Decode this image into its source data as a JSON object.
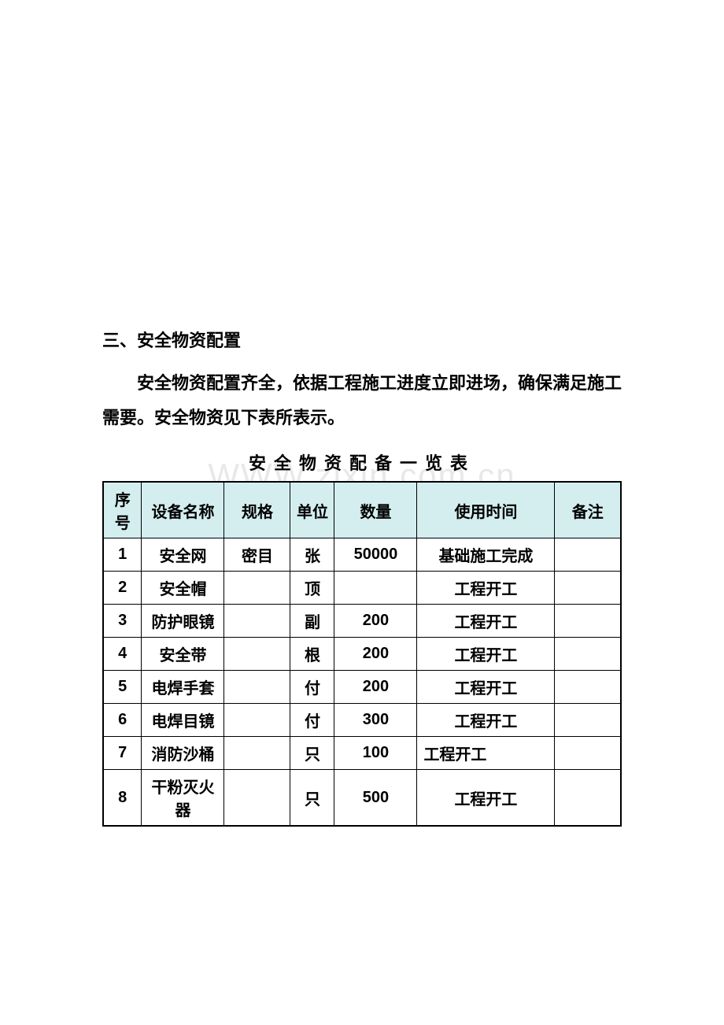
{
  "watermark": "WWW.zixin.com.cn",
  "section_heading": "三、安全物资配置",
  "body_text": "安全物资配置齐全，依据工程施工进度立即进场，确保满足施工需要。安全物资见下表所表示。",
  "table_title": "安全物资配备一览表",
  "table": {
    "header_bg_color": "#d4eef0",
    "border_color": "#000000",
    "columns": [
      {
        "key": "seq",
        "label": "序号",
        "width": "7%"
      },
      {
        "key": "name",
        "label": "设备名称",
        "width": "15%"
      },
      {
        "key": "spec",
        "label": "规格",
        "width": "12%"
      },
      {
        "key": "unit",
        "label": "单位",
        "width": "8%"
      },
      {
        "key": "qty",
        "label": "数量",
        "width": "15%"
      },
      {
        "key": "time",
        "label": "使用时间",
        "width": "25%"
      },
      {
        "key": "note",
        "label": "备注",
        "width": "12%"
      }
    ],
    "rows": [
      {
        "seq": "1",
        "name": "安全网",
        "spec": "密目",
        "unit": "张",
        "qty": "50000",
        "time": "基础施工完成",
        "note": ""
      },
      {
        "seq": "2",
        "name": "安全帽",
        "spec": "",
        "unit": "顶",
        "qty": "",
        "time": "工程开工",
        "note": ""
      },
      {
        "seq": "3",
        "name": "防护眼镜",
        "spec": "",
        "unit": "副",
        "qty": "200",
        "time": "工程开工",
        "note": ""
      },
      {
        "seq": "4",
        "name": "安全带",
        "spec": "",
        "unit": "根",
        "qty": "200",
        "time": "工程开工",
        "note": ""
      },
      {
        "seq": "5",
        "name": "电焊手套",
        "spec": "",
        "unit": "付",
        "qty": "200",
        "time": "工程开工",
        "note": ""
      },
      {
        "seq": "6",
        "name": "电焊目镜",
        "spec": "",
        "unit": "付",
        "qty": "300",
        "time": "工程开工",
        "note": ""
      },
      {
        "seq": "7",
        "name": "消防沙桶",
        "spec": "",
        "unit": "只",
        "qty": "100",
        "time": "工程开工",
        "note": "",
        "time_align": "left"
      },
      {
        "seq": "8",
        "name": "干粉灭火器",
        "spec": "",
        "unit": "只",
        "qty": "500",
        "time": "工程开工",
        "note": ""
      }
    ]
  },
  "styles": {
    "page_bg": "#ffffff",
    "text_color": "#000000",
    "watermark_color": "#e8e8e8",
    "heading_fontsize": 22,
    "body_fontsize": 22,
    "table_title_fontsize": 22,
    "cell_fontsize": 20
  }
}
